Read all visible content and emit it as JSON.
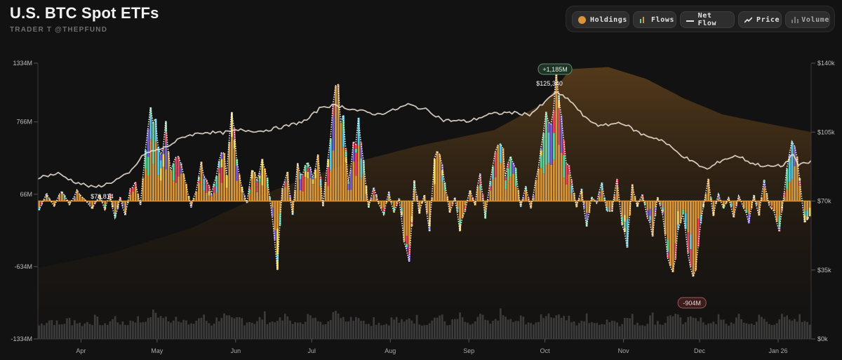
{
  "header": {
    "title": "U.S. BTC Spot ETFs",
    "subtitle": "TRADER T @THEPFUND"
  },
  "controls": [
    {
      "label": "Holdings",
      "icon": "holdings-dot-icon"
    },
    {
      "label": "Flows",
      "icon": "flows-bars-icon"
    },
    {
      "label": "Net Flow",
      "icon": "net-flow-line-icon"
    },
    {
      "label": "Price",
      "icon": "price-trend-icon"
    },
    {
      "label": "Volume",
      "icon": "volume-bars-icon"
    }
  ],
  "chart_data": {
    "type": "bar",
    "y_left": {
      "ticks": [
        "1334M",
        "766M",
        "66M",
        "-634M",
        "-1334M"
      ],
      "values": [
        1334,
        766,
        66,
        -634,
        -1334
      ],
      "range": [
        -1334,
        1334
      ]
    },
    "y_right": {
      "ticks": [
        "$140k",
        "$105k",
        "$70k",
        "$35k",
        "$0k"
      ],
      "values": [
        140000,
        105000,
        70000,
        35000,
        0
      ],
      "range": [
        0,
        140000
      ]
    },
    "months": [
      {
        "label": "Apr",
        "day": 17
      },
      {
        "label": "May",
        "day": 47
      },
      {
        "label": "Jun",
        "day": 78
      },
      {
        "label": "Jul",
        "day": 108
      },
      {
        "label": "Aug",
        "day": 139
      },
      {
        "label": "Sep",
        "day": 170
      },
      {
        "label": "Oct",
        "day": 200
      },
      {
        "label": "Nov",
        "day": 231
      },
      {
        "label": "Dec",
        "day": 261
      },
      {
        "label": "Jan 26",
        "day": 292
      }
    ],
    "days": 305,
    "annotations": {
      "max_flow": {
        "label": "+1,185M",
        "day": 204,
        "value": 1185
      },
      "min_flow": {
        "label": "-904M",
        "day": 258,
        "value": -904
      },
      "max_price": {
        "label": "$125,340",
        "day": 204,
        "value": 125340
      },
      "min_price": {
        "label": "$76,814",
        "day": 22,
        "value": 76814
      }
    },
    "price_anchors": [
      [
        0,
        82000
      ],
      [
        8,
        84000
      ],
      [
        14,
        80000
      ],
      [
        22,
        76814
      ],
      [
        28,
        79000
      ],
      [
        36,
        84000
      ],
      [
        42,
        94000
      ],
      [
        50,
        97000
      ],
      [
        58,
        103000
      ],
      [
        66,
        105000
      ],
      [
        72,
        104500
      ],
      [
        80,
        106000
      ],
      [
        88,
        105500
      ],
      [
        98,
        108000
      ],
      [
        106,
        111000
      ],
      [
        112,
        118000
      ],
      [
        118,
        118500
      ],
      [
        126,
        116000
      ],
      [
        134,
        114000
      ],
      [
        140,
        116000
      ],
      [
        146,
        119000
      ],
      [
        154,
        116000
      ],
      [
        160,
        111000
      ],
      [
        170,
        110500
      ],
      [
        178,
        114000
      ],
      [
        186,
        115000
      ],
      [
        194,
        114000
      ],
      [
        200,
        120000
      ],
      [
        204,
        125340
      ],
      [
        210,
        121000
      ],
      [
        216,
        112000
      ],
      [
        222,
        108000
      ],
      [
        230,
        110000
      ],
      [
        238,
        104000
      ],
      [
        246,
        101000
      ],
      [
        252,
        95000
      ],
      [
        258,
        90000
      ],
      [
        264,
        86000
      ],
      [
        270,
        91000
      ],
      [
        276,
        93000
      ],
      [
        282,
        89000
      ],
      [
        288,
        87500
      ],
      [
        294,
        88000
      ],
      [
        298,
        94000
      ],
      [
        300,
        88000
      ],
      [
        305,
        90000
      ]
    ],
    "holdings_anchors": [
      [
        0,
        36000
      ],
      [
        30,
        44000
      ],
      [
        60,
        56000
      ],
      [
        90,
        74000
      ],
      [
        120,
        88000
      ],
      [
        150,
        98000
      ],
      [
        180,
        106000
      ],
      [
        200,
        120000
      ],
      [
        210,
        137000
      ],
      [
        225,
        138000
      ],
      [
        240,
        132000
      ],
      [
        255,
        122000
      ],
      [
        270,
        114000
      ],
      [
        285,
        110000
      ],
      [
        305,
        105000
      ]
    ],
    "flow_anchors": [
      [
        0,
        -100
      ],
      [
        3,
        80
      ],
      [
        6,
        -60
      ],
      [
        9,
        120
      ],
      [
        12,
        -40
      ],
      [
        15,
        100
      ],
      [
        18,
        20
      ],
      [
        21,
        -80
      ],
      [
        24,
        60
      ],
      [
        26,
        -90
      ],
      [
        28,
        80
      ],
      [
        30,
        -200
      ],
      [
        32,
        40
      ],
      [
        34,
        -160
      ],
      [
        36,
        120
      ],
      [
        38,
        220
      ],
      [
        40,
        -40
      ],
      [
        42,
        520
      ],
      [
        44,
        900
      ],
      [
        46,
        930
      ],
      [
        48,
        420
      ],
      [
        50,
        760
      ],
      [
        52,
        360
      ],
      [
        54,
        520
      ],
      [
        56,
        380
      ],
      [
        58,
        180
      ],
      [
        60,
        -60
      ],
      [
        62,
        120
      ],
      [
        64,
        360
      ],
      [
        66,
        220
      ],
      [
        68,
        80
      ],
      [
        70,
        280
      ],
      [
        72,
        580
      ],
      [
        74,
        300
      ],
      [
        76,
        860
      ],
      [
        78,
        460
      ],
      [
        80,
        160
      ],
      [
        82,
        -20
      ],
      [
        84,
        330
      ],
      [
        86,
        200
      ],
      [
        88,
        440
      ],
      [
        90,
        240
      ],
      [
        92,
        -140
      ],
      [
        94,
        -620
      ],
      [
        96,
        140
      ],
      [
        98,
        300
      ],
      [
        100,
        -160
      ],
      [
        102,
        380
      ],
      [
        104,
        240
      ],
      [
        106,
        410
      ],
      [
        108,
        220
      ],
      [
        110,
        560
      ],
      [
        112,
        -60
      ],
      [
        114,
        460
      ],
      [
        116,
        980
      ],
      [
        118,
        1120
      ],
      [
        120,
        820
      ],
      [
        122,
        200
      ],
      [
        124,
        560
      ],
      [
        126,
        820
      ],
      [
        128,
        380
      ],
      [
        130,
        -80
      ],
      [
        132,
        160
      ],
      [
        134,
        -30
      ],
      [
        136,
        -140
      ],
      [
        138,
        90
      ],
      [
        140,
        -130
      ],
      [
        142,
        30
      ],
      [
        144,
        -420
      ],
      [
        146,
        -700
      ],
      [
        148,
        220
      ],
      [
        150,
        -120
      ],
      [
        152,
        60
      ],
      [
        154,
        -340
      ],
      [
        156,
        420
      ],
      [
        158,
        520
      ],
      [
        160,
        220
      ],
      [
        162,
        -130
      ],
      [
        164,
        40
      ],
      [
        166,
        -300
      ],
      [
        168,
        -100
      ],
      [
        170,
        120
      ],
      [
        172,
        -40
      ],
      [
        174,
        320
      ],
      [
        176,
        -160
      ],
      [
        178,
        200
      ],
      [
        180,
        480
      ],
      [
        182,
        700
      ],
      [
        184,
        300
      ],
      [
        186,
        540
      ],
      [
        188,
        320
      ],
      [
        190,
        -60
      ],
      [
        192,
        160
      ],
      [
        194,
        -80
      ],
      [
        196,
        200
      ],
      [
        198,
        560
      ],
      [
        200,
        920
      ],
      [
        202,
        780
      ],
      [
        204,
        1185
      ],
      [
        206,
        960
      ],
      [
        208,
        440
      ],
      [
        210,
        220
      ],
      [
        212,
        -60
      ],
      [
        214,
        120
      ],
      [
        216,
        -300
      ],
      [
        218,
        50
      ],
      [
        220,
        -20
      ],
      [
        222,
        200
      ],
      [
        224,
        -120
      ],
      [
        226,
        -100
      ],
      [
        228,
        240
      ],
      [
        230,
        -250
      ],
      [
        232,
        -420
      ],
      [
        234,
        160
      ],
      [
        236,
        -60
      ],
      [
        238,
        80
      ],
      [
        240,
        -160
      ],
      [
        242,
        -360
      ],
      [
        244,
        40
      ],
      [
        246,
        -120
      ],
      [
        248,
        -520
      ],
      [
        250,
        -860
      ],
      [
        252,
        -300
      ],
      [
        254,
        -120
      ],
      [
        256,
        -560
      ],
      [
        258,
        -904
      ],
      [
        260,
        -420
      ],
      [
        262,
        -80
      ],
      [
        264,
        220
      ],
      [
        266,
        -140
      ],
      [
        268,
        80
      ],
      [
        270,
        -90
      ],
      [
        272,
        40
      ],
      [
        274,
        -160
      ],
      [
        276,
        60
      ],
      [
        278,
        -70
      ],
      [
        280,
        -210
      ],
      [
        282,
        60
      ],
      [
        284,
        -150
      ],
      [
        286,
        220
      ],
      [
        288,
        -40
      ],
      [
        290,
        -120
      ],
      [
        292,
        -300
      ],
      [
        294,
        80
      ],
      [
        296,
        520
      ],
      [
        298,
        680
      ],
      [
        300,
        280
      ],
      [
        302,
        -260
      ],
      [
        305,
        -90
      ]
    ],
    "flow_colors": [
      "#d7953c",
      "#e8445f",
      "#5fd39a",
      "#7a5fd6",
      "#f2d35a",
      "#59c7e0"
    ],
    "volume_range": [
      0,
      1
    ]
  },
  "colors": {
    "background": "#121212",
    "holdings": "#d7953c",
    "price": "#efe3d6",
    "net_flow": "#ffffff",
    "zero_line": "#d7953c"
  }
}
